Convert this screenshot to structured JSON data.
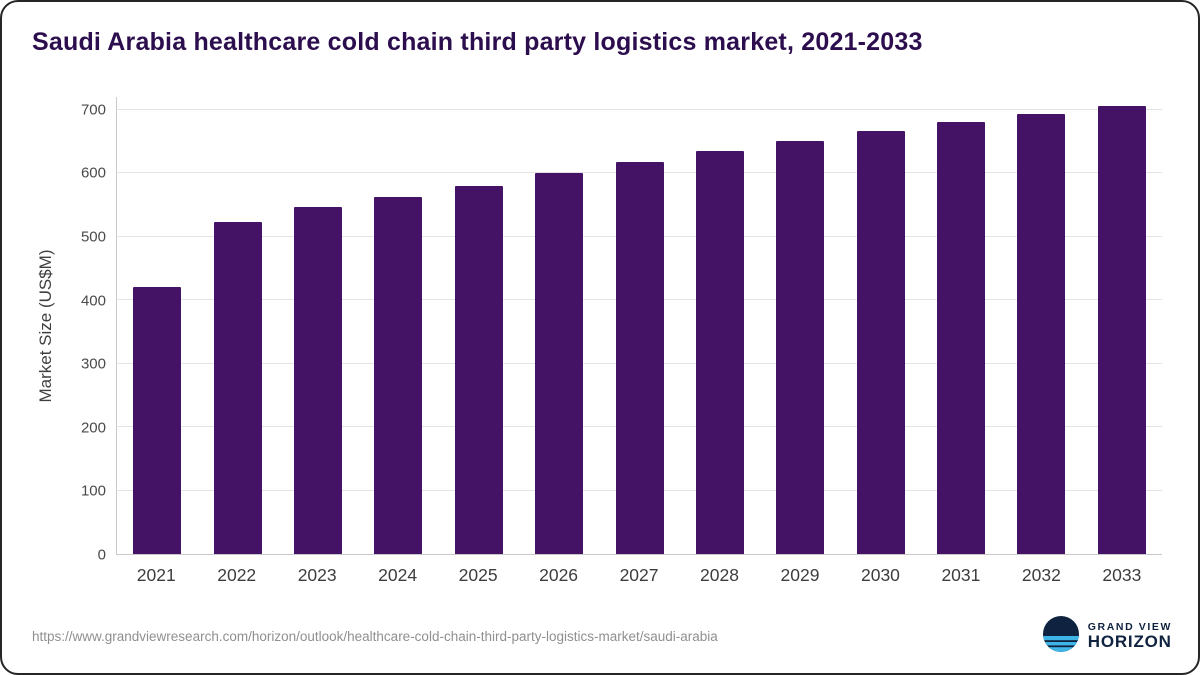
{
  "chart_data": {
    "type": "bar",
    "title": "Saudi Arabia healthcare cold chain third party logistics market, 2021-2033",
    "ylabel": "Market Size (US$M)",
    "xlabel": "",
    "categories": [
      "2021",
      "2022",
      "2023",
      "2024",
      "2025",
      "2026",
      "2027",
      "2028",
      "2029",
      "2030",
      "2031",
      "2032",
      "2033"
    ],
    "values": [
      420,
      523,
      546,
      563,
      580,
      601,
      618,
      635,
      651,
      667,
      681,
      694,
      706
    ],
    "ylim": [
      0,
      720
    ],
    "yticks": [
      0,
      100,
      200,
      300,
      400,
      500,
      600,
      700
    ],
    "grid": true,
    "legend": "none"
  },
  "colors": {
    "bar": "#451365",
    "title": "#2c0e4e",
    "logo_navy": "#0f2340",
    "logo_blue": "#3fb4e6"
  },
  "footer": {
    "source_url": "https://www.grandviewresearch.com/horizon/outlook/healthcare-cold-chain-third-party-logistics-market/saudi-arabia",
    "logo_line1": "GRAND VIEW",
    "logo_line2": "HORIZON"
  }
}
